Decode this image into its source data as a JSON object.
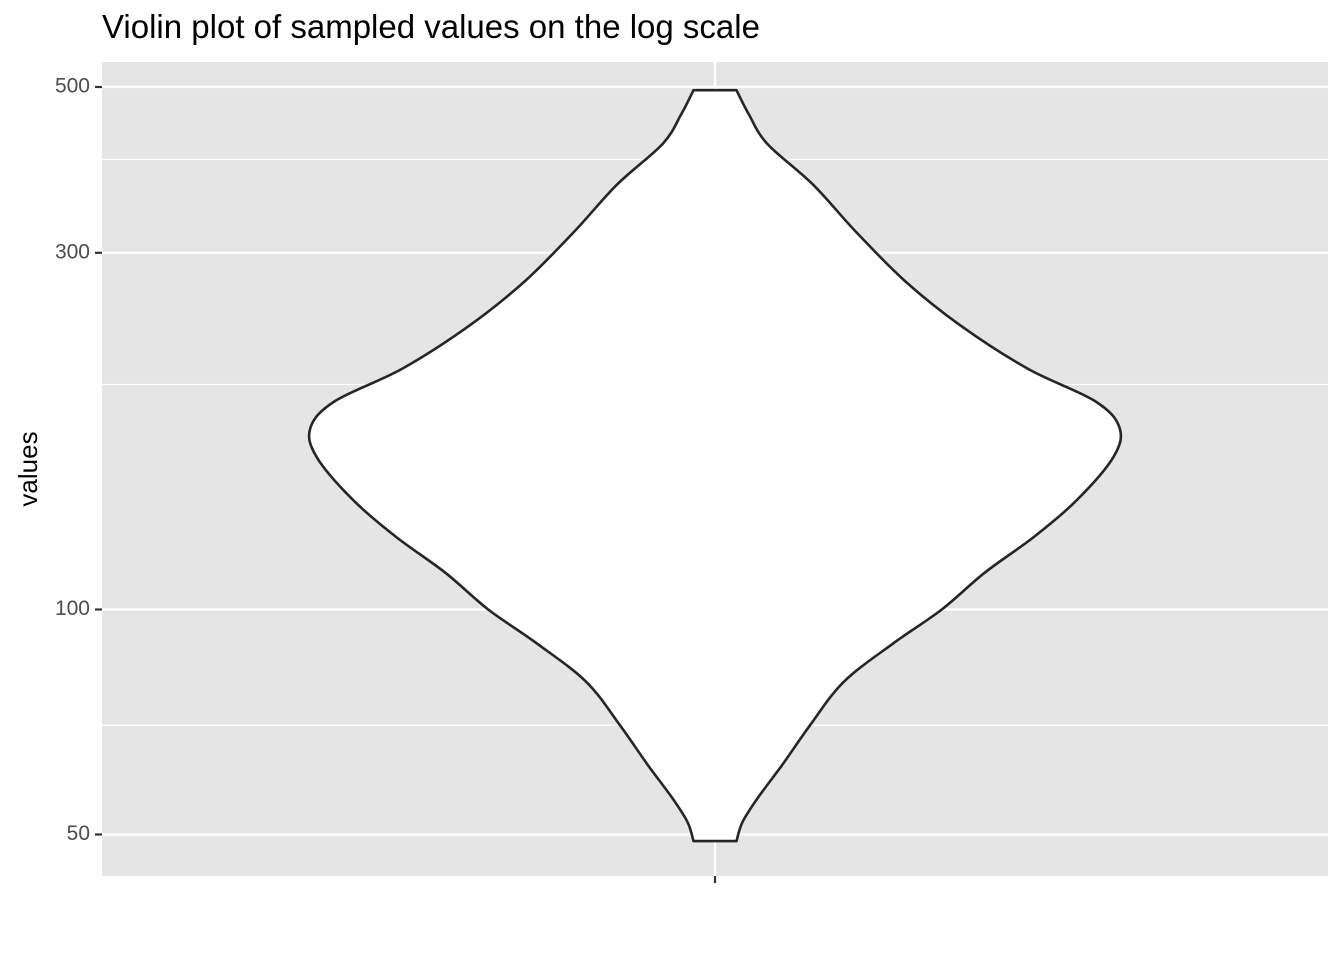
{
  "title": "Violin plot of sampled values on the log scale",
  "chart_data": {
    "type": "violin",
    "title": "Violin plot of sampled values on the log scale",
    "xlabel": "",
    "ylabel": "values",
    "y_scale": "log10",
    "ylim": [
      44,
      540
    ],
    "y_ticks": [
      50,
      100,
      300,
      500
    ],
    "y_tick_labels": [
      "50",
      "100",
      "300",
      "500"
    ],
    "y_minor_ticks": [
      70,
      200,
      400
    ],
    "x_categories": [
      ""
    ],
    "grid": true,
    "panel_color": "#e5e5e5",
    "gridline_color": "#ffffff",
    "violin_fill": "#ffffff",
    "violin_stroke": "#262626",
    "range": [
      49,
      495
    ],
    "density_profile": [
      {
        "value": 49,
        "half_width": 0.035
      },
      {
        "value": 52,
        "half_width": 0.045
      },
      {
        "value": 56,
        "half_width": 0.07
      },
      {
        "value": 62,
        "half_width": 0.11
      },
      {
        "value": 70,
        "half_width": 0.155
      },
      {
        "value": 80,
        "half_width": 0.21
      },
      {
        "value": 90,
        "half_width": 0.29
      },
      {
        "value": 100,
        "half_width": 0.37
      },
      {
        "value": 112,
        "half_width": 0.44
      },
      {
        "value": 125,
        "half_width": 0.52
      },
      {
        "value": 140,
        "half_width": 0.59
      },
      {
        "value": 160,
        "half_width": 0.65
      },
      {
        "value": 175,
        "half_width": 0.66
      },
      {
        "value": 190,
        "half_width": 0.62
      },
      {
        "value": 210,
        "half_width": 0.51
      },
      {
        "value": 240,
        "half_width": 0.4
      },
      {
        "value": 275,
        "half_width": 0.31
      },
      {
        "value": 320,
        "half_width": 0.23
      },
      {
        "value": 370,
        "half_width": 0.16
      },
      {
        "value": 420,
        "half_width": 0.085
      },
      {
        "value": 460,
        "half_width": 0.055
      },
      {
        "value": 495,
        "half_width": 0.035
      }
    ]
  }
}
